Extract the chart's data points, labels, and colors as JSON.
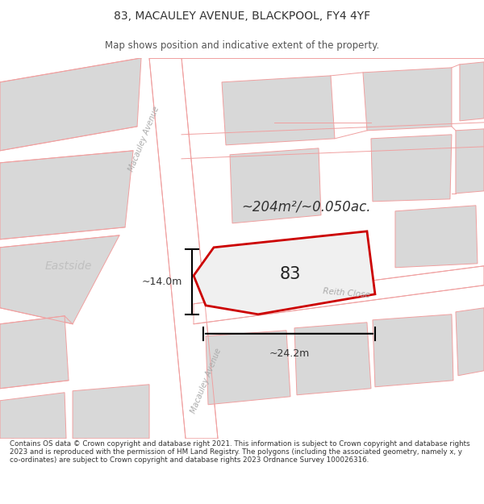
{
  "title_line1": "83, MACAULEY AVENUE, BLACKPOOL, FY4 4YF",
  "title_line2": "Map shows position and indicative extent of the property.",
  "area_text": "~204m²/~0.050ac.",
  "property_number": "83",
  "dim_width": "~24.2m",
  "dim_height": "~14.0m",
  "street_label_top": "Macauley Avenue",
  "street_label_bottom": "Macauley Avenue",
  "street_label_road": "Reith Close",
  "area_label_left": "Eastside",
  "footer_text": "Contains OS data © Crown copyright and database right 2021. This information is subject to Crown copyright and database rights 2023 and is reproduced with the permission of HM Land Registry. The polygons (including the associated geometry, namely x, y co-ordinates) are subject to Crown copyright and database rights 2023 Ordnance Survey 100026316.",
  "bg_color": "#ffffff",
  "map_bg": "#f0f0f0",
  "road_color": "#ffffff",
  "block_color": "#d8d8d8",
  "road_line_color": "#f0a0a0",
  "property_fill": "#f0f0f0",
  "property_edge": "#cc0000",
  "text_color": "#333333",
  "street_text_color": "#aaaaaa"
}
